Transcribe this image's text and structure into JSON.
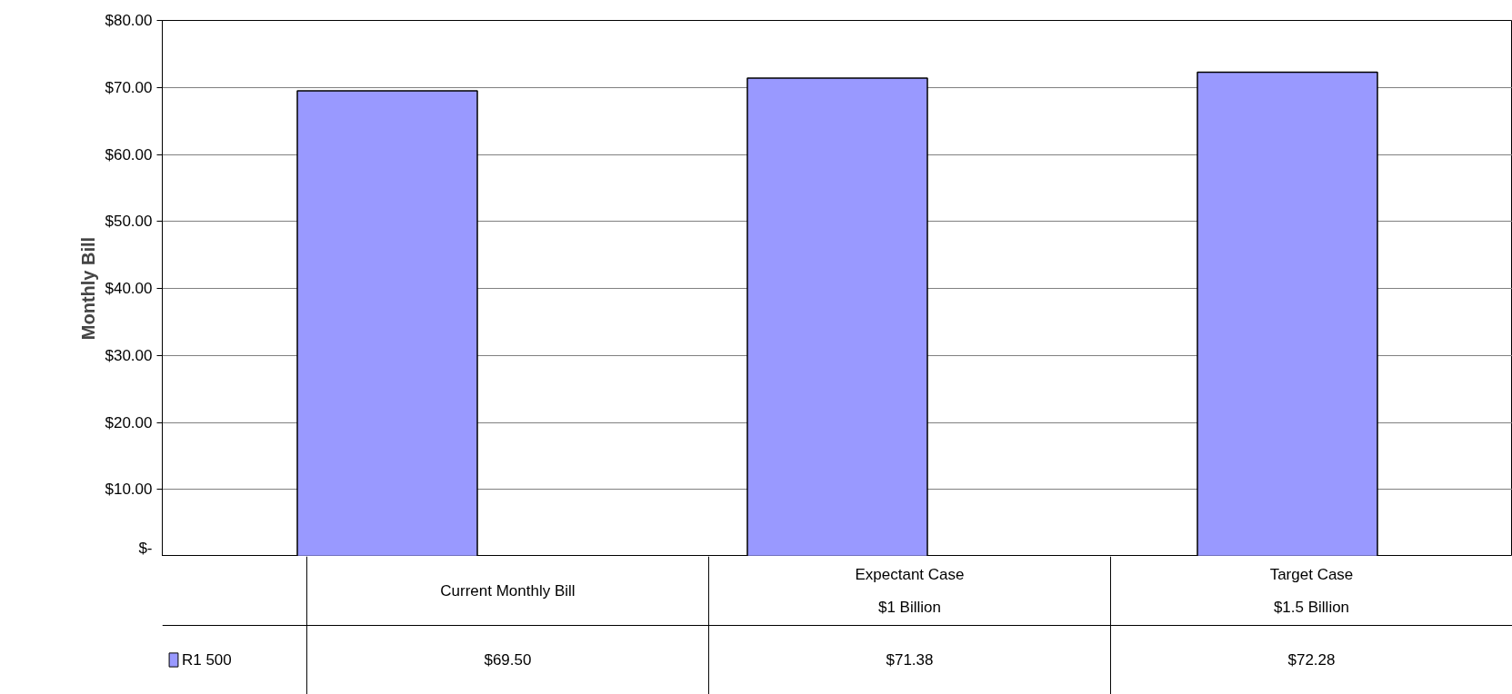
{
  "chart_data": {
    "type": "bar",
    "ylabel": "Monthly Bill",
    "categories": [
      "Current Monthly Bill",
      "Expectant Case\n$1 Billion",
      "Target Case\n$1.5 Billion"
    ],
    "series": [
      {
        "name": "R1 500",
        "color": "#9999ff",
        "values": [
          69.5,
          71.38,
          72.28
        ],
        "value_labels": [
          "$69.50",
          "$71.38",
          "$72.28"
        ]
      }
    ],
    "ylim": [
      0,
      80
    ],
    "yticks": [
      {
        "value": 0,
        "label": "$-"
      },
      {
        "value": 10,
        "label": "$10.00"
      },
      {
        "value": 20,
        "label": "$20.00"
      },
      {
        "value": 30,
        "label": "$30.00"
      },
      {
        "value": 40,
        "label": "$40.00"
      },
      {
        "value": 50,
        "label": "$50.00"
      },
      {
        "value": 60,
        "label": "$60.00"
      },
      {
        "value": 70,
        "label": "$70.00"
      },
      {
        "value": 80,
        "label": "$80.00"
      }
    ],
    "grid": "y",
    "legend": "bottom left"
  }
}
